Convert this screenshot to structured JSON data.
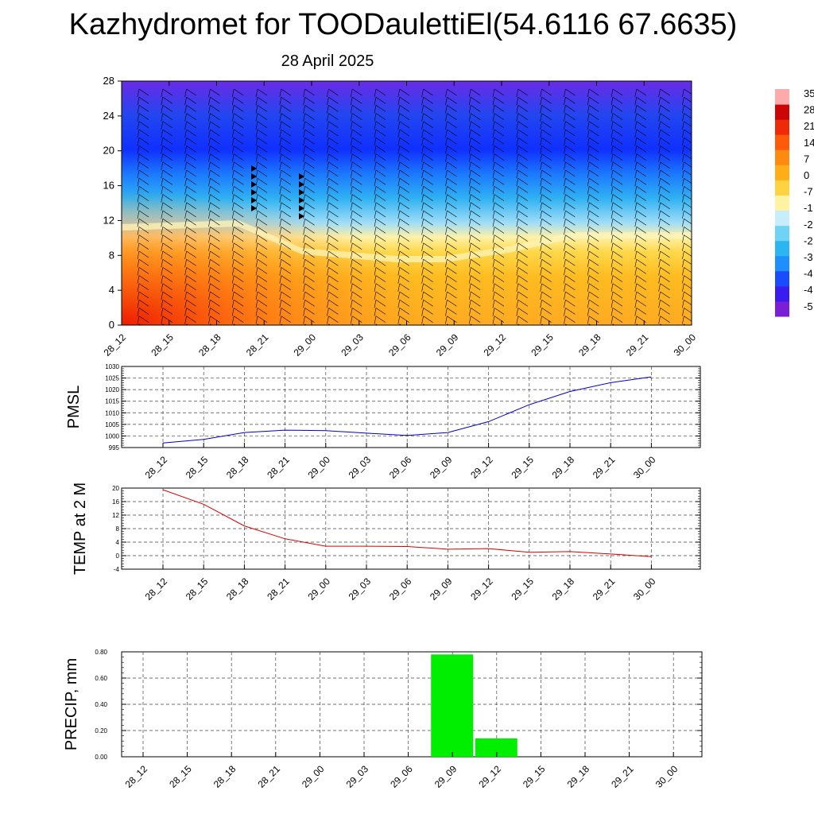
{
  "header": {
    "title": "Kazhydromet for TOODaulettiEl(54.6116 67.6635)",
    "subtitle": "28 April 2025"
  },
  "colors": {
    "pmsl_line": "#0000cc",
    "temp_line": "#dd0000",
    "precip_bar": "#00ee00",
    "barb": "#000000"
  },
  "chart_data": [
    {
      "type": "heatmap",
      "title": "",
      "xlabel": "",
      "ylabel": "",
      "x_ticks": [
        "28_12",
        "28_15",
        "28_18",
        "28_21",
        "29_00",
        "29_03",
        "29_06",
        "29_09",
        "29_12",
        "29_15",
        "29_18",
        "29_21",
        "30_00"
      ],
      "y_ticks": [
        0,
        4,
        8,
        12,
        16,
        20,
        24,
        28
      ],
      "ylim": [
        0,
        28
      ],
      "colorbar_labels": [
        "35",
        "28",
        "21",
        "14",
        "7",
        "0",
        "-7",
        "-1",
        "-2",
        "-2",
        "-3",
        "-4",
        "-4",
        "-5"
      ],
      "colorscale": [
        "#7a1fd6",
        "#3b1cf0",
        "#1a4cff",
        "#1f8fff",
        "#2bb6f2",
        "#6fd3f5",
        "#c7ecfb",
        "#fff2a0",
        "#ffd240",
        "#ffae17",
        "#ff8a10",
        "#ff5a0c",
        "#ee2a08",
        "#cc0606",
        "#ffaaaa"
      ],
      "notes": "wind barbs overlaid on temperature cross-section"
    },
    {
      "type": "line",
      "title": "",
      "ylabel": "PMSL",
      "x": [
        "28_12",
        "28_15",
        "28_18",
        "28_21",
        "29_00",
        "29_03",
        "29_06",
        "29_09",
        "29_12",
        "29_15",
        "29_18",
        "29_21",
        "30_00"
      ],
      "series": [
        {
          "values": [
            997,
            998.5,
            1001.5,
            1002.5,
            1002.3,
            1001.2,
            1000.2,
            1001.5,
            1006.2,
            1013.5,
            1019.2,
            1023,
            1025.5
          ]
        }
      ],
      "y_ticks": [
        995,
        1000,
        1005,
        1010,
        1015,
        1020,
        1025,
        1030
      ],
      "ylim": [
        995,
        1030
      ],
      "grid": true
    },
    {
      "type": "line",
      "title": "",
      "ylabel": "TEMP at 2 M",
      "x": [
        "28_12",
        "28_15",
        "28_18",
        "28_21",
        "29_00",
        "29_03",
        "29_06",
        "29_09",
        "29_12",
        "29_15",
        "29_18",
        "29_21",
        "30_00"
      ],
      "series": [
        {
          "values": [
            19.5,
            15.2,
            8.8,
            5.0,
            2.8,
            2.8,
            2.7,
            1.9,
            2.1,
            1.0,
            1.2,
            0.5,
            -0.3
          ]
        }
      ],
      "y_ticks": [
        -4,
        0,
        4,
        8,
        12,
        16,
        20
      ],
      "ylim": [
        -4,
        20
      ],
      "grid": true
    },
    {
      "type": "bar",
      "title": "",
      "ylabel": "PRECIP, mm",
      "categories": [
        "28_12",
        "28_15",
        "28_18",
        "28_21",
        "29_00",
        "29_03",
        "29_06",
        "29_09",
        "29_12",
        "29_15",
        "29_18",
        "29_21",
        "30_00"
      ],
      "values": [
        0,
        0,
        0,
        0,
        0,
        0,
        0,
        0.78,
        0.14,
        0,
        0,
        0,
        0
      ],
      "y_ticks": [
        "0.00",
        "0.20",
        "0.40",
        "0.60",
        "0.80"
      ],
      "ylim": [
        0,
        0.8
      ],
      "grid": true
    }
  ]
}
